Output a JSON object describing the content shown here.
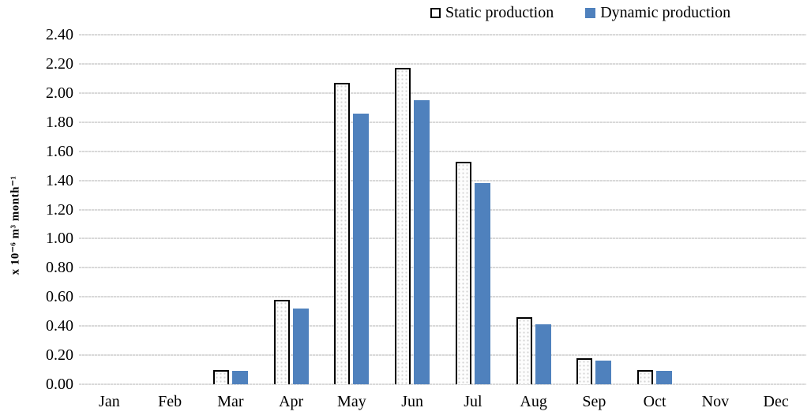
{
  "chart_data": {
    "type": "bar",
    "title": "",
    "categories": [
      "Jan",
      "Feb",
      "Mar",
      "Apr",
      "May",
      "Jun",
      "Jul",
      "Aug",
      "Sep",
      "Oct",
      "Nov",
      "Dec"
    ],
    "series": [
      {
        "name": "Static production",
        "values": [
          0,
          0,
          0.1,
          0.58,
          2.07,
          2.17,
          1.53,
          0.46,
          0.18,
          0.1,
          0,
          0
        ],
        "fill": "#FFFFFF",
        "pattern": "dotted",
        "border_color": "#000000"
      },
      {
        "name": "Dynamic production",
        "values": [
          0,
          0,
          0.09,
          0.52,
          1.86,
          1.95,
          1.38,
          0.41,
          0.16,
          0.09,
          0,
          0
        ],
        "fill": "#4F81BD"
      }
    ],
    "xlabel": "",
    "ylabel": "x 10⁻⁶ m³ month⁻¹",
    "ylim": [
      0.0,
      2.4
    ],
    "ytick_step": 0.2,
    "ytick_labels": [
      "0.00",
      "0.20",
      "0.40",
      "0.60",
      "0.80",
      "1.00",
      "1.20",
      "1.40",
      "1.60",
      "1.80",
      "2.00",
      "2.20",
      "2.40"
    ],
    "grid": true,
    "gridline_color": "#D9D9D9",
    "legend_position": "top-center",
    "background_color": "#FFFFFF"
  }
}
